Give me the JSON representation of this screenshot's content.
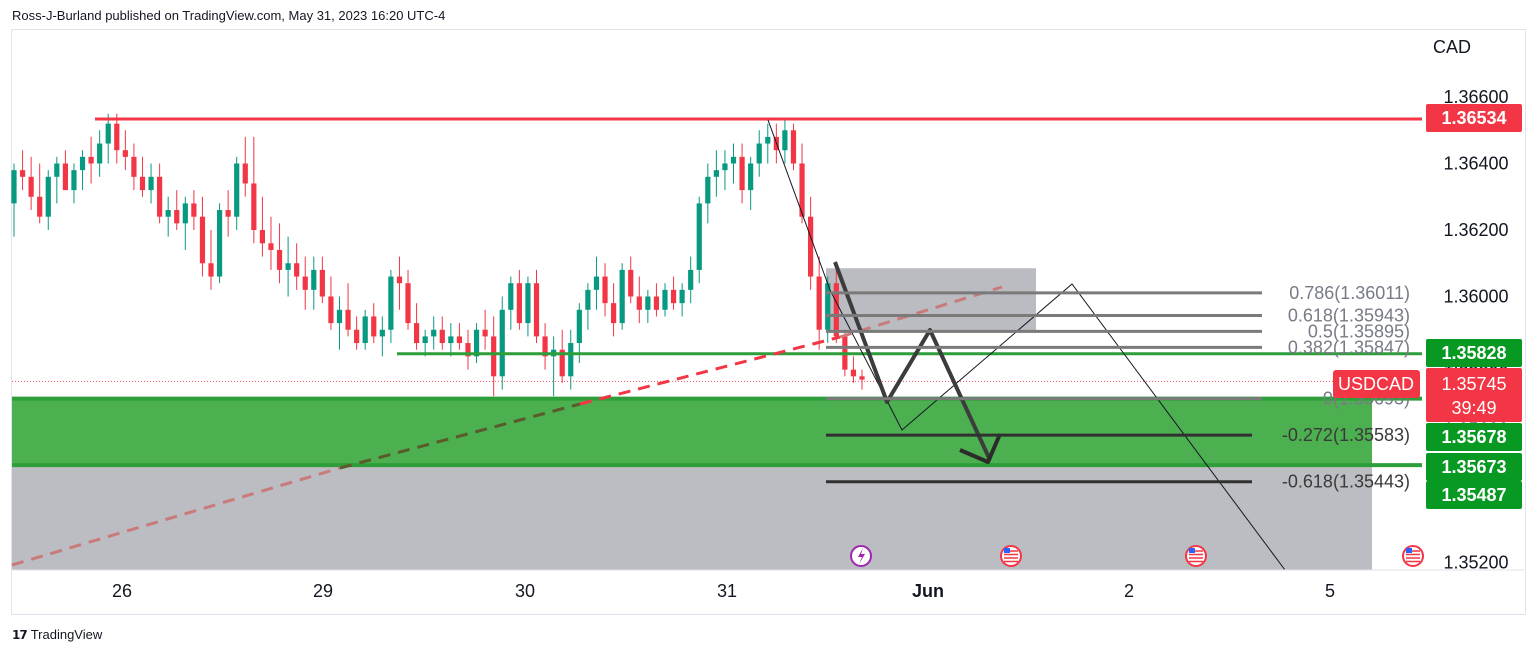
{
  "header": {
    "published_by": "Ross-J-Burland published on TradingView.com, May 31, 2023 16:20 UTC-4"
  },
  "footer": {
    "brand": "TradingView"
  },
  "chart_data": {
    "type": "candlestick",
    "symbol": "USDCAD",
    "currency": "CAD",
    "countdown": "39:49",
    "current_price": 1.35745,
    "x_ticks": [
      "26",
      "29",
      "30",
      "31",
      "Jun",
      "2",
      "5"
    ],
    "y_ticks": [
      1.366,
      1.364,
      1.362,
      1.36,
      1.358,
      1.356,
      1.354,
      1.352
    ],
    "y_tick_labels": [
      "1.36600",
      "1.36400",
      "1.36200",
      "1.36000",
      "1.35800",
      "1.35600",
      "1.35400",
      "1.35200"
    ],
    "ylim": [
      1.3519,
      1.3674
    ],
    "price_labels": [
      {
        "name": "resistance",
        "value": 1.36534,
        "text": "1.36534",
        "color": "#f23645"
      },
      {
        "name": "support-line",
        "value": 1.35828,
        "text": "1.35828",
        "color": "#089922"
      },
      {
        "name": "symbol-price",
        "value": 1.35745,
        "text": "1.35745",
        "color": "#f23645"
      },
      {
        "name": "zone-top",
        "value": 1.35678,
        "text": "1.35678",
        "color": "#089922"
      },
      {
        "name": "zone-bottom",
        "value": 1.35673,
        "text": "1.35673",
        "color": "#089922"
      },
      {
        "name": "fib-target",
        "value": 1.35487,
        "text": "1.35487",
        "color": "#089922"
      }
    ],
    "fib_levels": [
      {
        "ratio": "0.786",
        "price": 1.36011,
        "label": "0.786(1.36011)"
      },
      {
        "ratio": "0.618",
        "price": 1.35943,
        "label": "0.618(1.35943)"
      },
      {
        "ratio": "0.5",
        "price": 1.35895,
        "label": "0.5(1.35895)"
      },
      {
        "ratio": "0.382",
        "price": 1.35847,
        "label": "0.382(1.35847)"
      },
      {
        "ratio": "0",
        "price": 1.35693,
        "label": "0(1.35693)"
      },
      {
        "ratio": "-0.272",
        "price": 1.35583,
        "label": "-0.272(1.35583)"
      },
      {
        "ratio": "-0.618",
        "price": 1.35443,
        "label": "-0.618(1.35443)"
      }
    ],
    "candles": [
      [
        1.3628,
        1.364,
        1.3618,
        1.3638
      ],
      [
        1.3638,
        1.3644,
        1.3632,
        1.3636
      ],
      [
        1.3636,
        1.3642,
        1.3626,
        1.363
      ],
      [
        1.363,
        1.364,
        1.3622,
        1.3624
      ],
      [
        1.3624,
        1.3638,
        1.362,
        1.3636
      ],
      [
        1.3636,
        1.3642,
        1.3628,
        1.364
      ],
      [
        1.364,
        1.3644,
        1.3632,
        1.3632
      ],
      [
        1.3632,
        1.364,
        1.3628,
        1.3638
      ],
      [
        1.3638,
        1.3644,
        1.3632,
        1.3642
      ],
      [
        1.3642,
        1.3648,
        1.3634,
        1.364
      ],
      [
        1.364,
        1.365,
        1.3636,
        1.3646
      ],
      [
        1.3646,
        1.3655,
        1.364,
        1.3652
      ],
      [
        1.3652,
        1.3655,
        1.364,
        1.3644
      ],
      [
        1.3644,
        1.365,
        1.3638,
        1.3642
      ],
      [
        1.3642,
        1.3646,
        1.3632,
        1.3636
      ],
      [
        1.3636,
        1.3642,
        1.363,
        1.3632
      ],
      [
        1.3632,
        1.364,
        1.3628,
        1.3636
      ],
      [
        1.3636,
        1.364,
        1.3622,
        1.3624
      ],
      [
        1.3624,
        1.363,
        1.3618,
        1.3626
      ],
      [
        1.3626,
        1.3632,
        1.362,
        1.3622
      ],
      [
        1.3622,
        1.363,
        1.3614,
        1.3628
      ],
      [
        1.3628,
        1.3632,
        1.362,
        1.3624
      ],
      [
        1.3624,
        1.363,
        1.3606,
        1.361
      ],
      [
        1.361,
        1.362,
        1.3602,
        1.3606
      ],
      [
        1.3606,
        1.3628,
        1.3604,
        1.3626
      ],
      [
        1.3626,
        1.3632,
        1.3618,
        1.3624
      ],
      [
        1.3624,
        1.3642,
        1.362,
        1.364
      ],
      [
        1.364,
        1.3648,
        1.363,
        1.3634
      ],
      [
        1.3634,
        1.3648,
        1.3616,
        1.362
      ],
      [
        1.362,
        1.363,
        1.3612,
        1.3616
      ],
      [
        1.3616,
        1.3624,
        1.3608,
        1.3614
      ],
      [
        1.3614,
        1.3622,
        1.3604,
        1.3608
      ],
      [
        1.3608,
        1.3618,
        1.36,
        1.361
      ],
      [
        1.361,
        1.3616,
        1.3602,
        1.3606
      ],
      [
        1.3606,
        1.3612,
        1.3596,
        1.3602
      ],
      [
        1.3602,
        1.3612,
        1.3596,
        1.3608
      ],
      [
        1.3608,
        1.3612,
        1.3598,
        1.36
      ],
      [
        1.36,
        1.3606,
        1.359,
        1.3592
      ],
      [
        1.3592,
        1.36,
        1.3584,
        1.3596
      ],
      [
        1.3596,
        1.3604,
        1.3588,
        1.359
      ],
      [
        1.359,
        1.3594,
        1.3584,
        1.3586
      ],
      [
        1.3586,
        1.3596,
        1.3584,
        1.3594
      ],
      [
        1.3594,
        1.3598,
        1.3586,
        1.3588
      ],
      [
        1.3588,
        1.3594,
        1.3582,
        1.359
      ],
      [
        1.359,
        1.3608,
        1.3586,
        1.3606
      ],
      [
        1.3606,
        1.3612,
        1.3596,
        1.3604
      ],
      [
        1.3604,
        1.3608,
        1.359,
        1.3592
      ],
      [
        1.3592,
        1.3598,
        1.3584,
        1.3586
      ],
      [
        1.3586,
        1.359,
        1.3582,
        1.3588
      ],
      [
        1.3588,
        1.3594,
        1.3584,
        1.359
      ],
      [
        1.359,
        1.3594,
        1.3584,
        1.3586
      ],
      [
        1.3586,
        1.3592,
        1.3582,
        1.3588
      ],
      [
        1.3588,
        1.3592,
        1.3584,
        1.3586
      ],
      [
        1.3586,
        1.359,
        1.3578,
        1.3582
      ],
      [
        1.3582,
        1.3592,
        1.358,
        1.359
      ],
      [
        1.359,
        1.3596,
        1.3584,
        1.3588
      ],
      [
        1.3588,
        1.3594,
        1.357,
        1.3576
      ],
      [
        1.3576,
        1.36,
        1.3572,
        1.3596
      ],
      [
        1.3596,
        1.3606,
        1.359,
        1.3604
      ],
      [
        1.3604,
        1.3608,
        1.359,
        1.3592
      ],
      [
        1.3592,
        1.3606,
        1.3588,
        1.3604
      ],
      [
        1.3604,
        1.3608,
        1.3586,
        1.3588
      ],
      [
        1.3588,
        1.3592,
        1.3578,
        1.3582
      ],
      [
        1.3582,
        1.3588,
        1.357,
        1.3584
      ],
      [
        1.3584,
        1.359,
        1.3574,
        1.3576
      ],
      [
        1.3576,
        1.359,
        1.3572,
        1.3586
      ],
      [
        1.3586,
        1.3598,
        1.358,
        1.3596
      ],
      [
        1.3596,
        1.3604,
        1.359,
        1.3602
      ],
      [
        1.3602,
        1.3612,
        1.3596,
        1.3606
      ],
      [
        1.3606,
        1.361,
        1.3594,
        1.3598
      ],
      [
        1.3598,
        1.3604,
        1.3588,
        1.3592
      ],
      [
        1.3592,
        1.361,
        1.359,
        1.3608
      ],
      [
        1.3608,
        1.3612,
        1.3598,
        1.36
      ],
      [
        1.36,
        1.3606,
        1.3592,
        1.3596
      ],
      [
        1.3596,
        1.3602,
        1.3592,
        1.36
      ],
      [
        1.36,
        1.3604,
        1.3594,
        1.3596
      ],
      [
        1.3596,
        1.3604,
        1.3594,
        1.3602
      ],
      [
        1.3602,
        1.3606,
        1.3596,
        1.3598
      ],
      [
        1.3598,
        1.3604,
        1.3594,
        1.3602
      ],
      [
        1.3602,
        1.3612,
        1.3598,
        1.3608
      ],
      [
        1.3608,
        1.363,
        1.3604,
        1.3628
      ],
      [
        1.3628,
        1.364,
        1.3622,
        1.3636
      ],
      [
        1.3636,
        1.3644,
        1.363,
        1.3638
      ],
      [
        1.3638,
        1.3644,
        1.3632,
        1.364
      ],
      [
        1.364,
        1.3646,
        1.3634,
        1.3642
      ],
      [
        1.3642,
        1.3646,
        1.3628,
        1.3632
      ],
      [
        1.3632,
        1.3642,
        1.3626,
        1.364
      ],
      [
        1.364,
        1.365,
        1.3636,
        1.3646
      ],
      [
        1.3646,
        1.3652,
        1.364,
        1.3648
      ],
      [
        1.3648,
        1.3652,
        1.364,
        1.3644
      ],
      [
        1.3644,
        1.3653,
        1.364,
        1.365
      ],
      [
        1.365,
        1.3652,
        1.3638,
        1.364
      ],
      [
        1.364,
        1.3646,
        1.3622,
        1.3624
      ],
      [
        1.3624,
        1.363,
        1.3602,
        1.3606
      ],
      [
        1.3606,
        1.3612,
        1.3584,
        1.359
      ],
      [
        1.359,
        1.3606,
        1.3586,
        1.3604
      ],
      [
        1.3604,
        1.3608,
        1.3586,
        1.3588
      ],
      [
        1.3588,
        1.359,
        1.3576,
        1.3578
      ],
      [
        1.3578,
        1.3582,
        1.3574,
        1.3576
      ],
      [
        1.3576,
        1.3578,
        1.3572,
        1.3575
      ]
    ]
  }
}
